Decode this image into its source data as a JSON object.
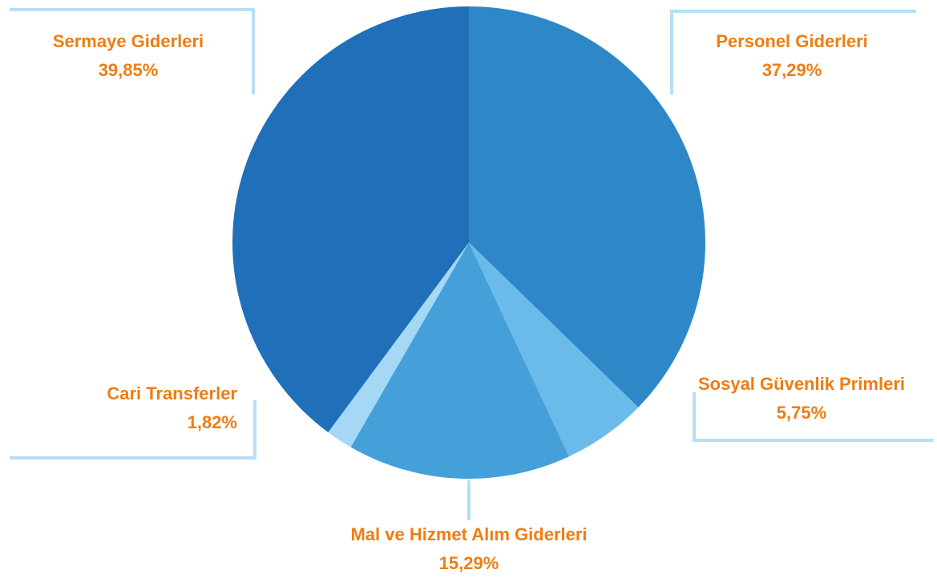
{
  "chart_data": {
    "type": "pie",
    "categories": [
      "Personel Giderleri",
      "Sosyal Güvenlik Primleri",
      "Mal ve Hizmet Alım Giderleri",
      "Cari Transferler",
      "Sermaye Giderleri"
    ],
    "values": [
      37.29,
      5.75,
      15.29,
      1.82,
      39.85
    ],
    "value_labels": [
      "37,29%",
      "5,75%",
      "15,29%",
      "1,82%",
      "39,85%"
    ],
    "colors": [
      "#2e88c8",
      "#6abbe9",
      "#45a0da",
      "#a4d8f5",
      "#1f70b8"
    ],
    "label_color": "#ee7d12"
  }
}
